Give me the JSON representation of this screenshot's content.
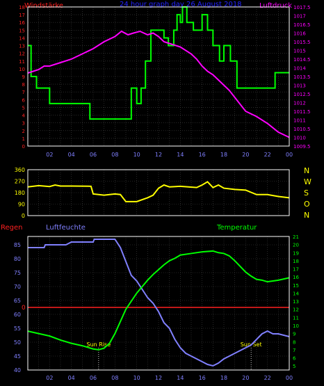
{
  "header": {
    "title": "24 hour graph day   26 August  2018",
    "left_label": "Windstärke",
    "right_label": "Luftdruck"
  },
  "colors": {
    "background": "#000000",
    "grid": "#444444",
    "frame": "#ffffff",
    "title": "#2323ff",
    "wind_axis": "#ff2020",
    "pressure": "#ff00ff",
    "wind": "#00ff00",
    "direction": "#ffff00",
    "humidity": "#8080ff",
    "temperature": "#00ff00",
    "rain": "#ff2020",
    "sun_text": "#ffff00",
    "xtick": "#8080ff",
    "dir_letters": "#ffff00"
  },
  "chart_data": [
    {
      "type": "line",
      "title": "24 hour graph day   26 August  2018",
      "x_range": [
        0,
        24
      ],
      "x_tick_labels": [
        "02",
        "04",
        "06",
        "08",
        "10",
        "12",
        "14",
        "16",
        "18",
        "20",
        "22",
        "00"
      ],
      "left_axis": {
        "label": "Windstärke",
        "range": [
          0,
          18
        ],
        "ticks": [
          0,
          1,
          2,
          3,
          4,
          5,
          6,
          7,
          8,
          9,
          10,
          11,
          12,
          13,
          14,
          15,
          16,
          17,
          18
        ]
      },
      "right_axis": {
        "label": "Luftdruck",
        "range": [
          1009.5,
          1017.5
        ],
        "ticks": [
          "1009.5",
          "1010",
          "1010.5",
          "1011",
          "1011.5",
          "1012",
          "1012.5",
          "1013",
          "1013.5",
          "1014",
          "1014.5",
          "1015",
          "1015.5",
          "1016",
          "1016.5",
          "1017",
          "1017.5"
        ]
      },
      "series": [
        {
          "name": "Windstärke",
          "kind": "step",
          "axis": "left",
          "points": [
            [
              0,
              13
            ],
            [
              0.3,
              9
            ],
            [
              0.8,
              7.5
            ],
            [
              2,
              5.5
            ],
            [
              5.7,
              3.5
            ],
            [
              9.2,
              3.5
            ],
            [
              9.5,
              7.5
            ],
            [
              10,
              5.5
            ],
            [
              10.4,
              7.5
            ],
            [
              10.8,
              11
            ],
            [
              11.3,
              15
            ],
            [
              12,
              15
            ],
            [
              12.5,
              14
            ],
            [
              12.9,
              13
            ],
            [
              13.4,
              15
            ],
            [
              13.7,
              17
            ],
            [
              14,
              16
            ],
            [
              14.2,
              18
            ],
            [
              14.6,
              16
            ],
            [
              15.2,
              15
            ],
            [
              15.7,
              15
            ],
            [
              16,
              17
            ],
            [
              16.5,
              15
            ],
            [
              17,
              13
            ],
            [
              17.6,
              11
            ],
            [
              18,
              13
            ],
            [
              18.6,
              11
            ],
            [
              19.2,
              7.5
            ],
            [
              21.8,
              7.5
            ],
            [
              22.7,
              9.5
            ],
            [
              24,
              9.5
            ]
          ]
        },
        {
          "name": "Luftdruck",
          "kind": "line",
          "axis": "right",
          "points": [
            [
              0,
              1013.7
            ],
            [
              1,
              1013.9
            ],
            [
              1.5,
              1014.1
            ],
            [
              2,
              1014.1
            ],
            [
              3,
              1014.3
            ],
            [
              4,
              1014.5
            ],
            [
              5,
              1014.8
            ],
            [
              6,
              1015.1
            ],
            [
              7,
              1015.5
            ],
            [
              8,
              1015.8
            ],
            [
              8.6,
              1016.1
            ],
            [
              9.2,
              1015.9
            ],
            [
              9.7,
              1016
            ],
            [
              10.3,
              1016.1
            ],
            [
              11,
              1015.9
            ],
            [
              11.5,
              1016
            ],
            [
              12,
              1015.8
            ],
            [
              12.5,
              1015.5
            ],
            [
              13,
              1015.4
            ],
            [
              14,
              1015.2
            ],
            [
              15,
              1014.8
            ],
            [
              15.5,
              1014.5
            ],
            [
              16,
              1014.1
            ],
            [
              16.5,
              1013.8
            ],
            [
              17,
              1013.6
            ],
            [
              17.5,
              1013.3
            ],
            [
              18,
              1013
            ],
            [
              18.5,
              1012.7
            ],
            [
              19,
              1012.3
            ],
            [
              19.5,
              1011.9
            ],
            [
              20,
              1011.5
            ],
            [
              21,
              1011.2
            ],
            [
              22,
              1010.8
            ],
            [
              23,
              1010.3
            ],
            [
              24,
              1010
            ]
          ]
        }
      ]
    },
    {
      "type": "line",
      "x_range": [
        0,
        24
      ],
      "x_tick_labels": [
        "02",
        "04",
        "06",
        "08",
        "10",
        "12",
        "14",
        "16",
        "18",
        "20",
        "22",
        "00"
      ],
      "left_axis": {
        "range": [
          0,
          360
        ],
        "ticks": [
          0,
          90,
          180,
          270,
          360
        ]
      },
      "right_axis_labels": [
        "N",
        "W",
        "S",
        "O",
        "N"
      ],
      "series": [
        {
          "name": "Windrichtung",
          "kind": "line",
          "points": [
            [
              0,
              225
            ],
            [
              1,
              235
            ],
            [
              2,
              228
            ],
            [
              2.5,
              240
            ],
            [
              3,
              232
            ],
            [
              4,
              232
            ],
            [
              5.8,
              230
            ],
            [
              6,
              170
            ],
            [
              7,
              160
            ],
            [
              8,
              170
            ],
            [
              8.5,
              165
            ],
            [
              9,
              110
            ],
            [
              10,
              110
            ],
            [
              11,
              140
            ],
            [
              11.5,
              160
            ],
            [
              12,
              215
            ],
            [
              12.5,
              240
            ],
            [
              13,
              225
            ],
            [
              14,
              230
            ],
            [
              15.5,
              220
            ],
            [
              16,
              240
            ],
            [
              16.5,
              265
            ],
            [
              17,
              220
            ],
            [
              17.5,
              240
            ],
            [
              18,
              215
            ],
            [
              19,
              205
            ],
            [
              20,
              200
            ],
            [
              21,
              165
            ],
            [
              22,
              165
            ],
            [
              23,
              150
            ],
            [
              24,
              140
            ]
          ]
        }
      ]
    },
    {
      "type": "line",
      "x_range": [
        0,
        24
      ],
      "x_tick_labels": [
        "02",
        "04",
        "06",
        "08",
        "10",
        "12",
        "14",
        "16",
        "18",
        "20",
        "22",
        "00"
      ],
      "labels": {
        "rain": "Regen",
        "humidity": "Luftfeuchte",
        "temperature": "Temperatur"
      },
      "left_axis": {
        "label": "Luftfeuchte",
        "range": [
          40,
          88
        ],
        "ticks": [
          40,
          45,
          50,
          55,
          60,
          65,
          70,
          75,
          80,
          85
        ]
      },
      "rain_axis": {
        "label": "Regen",
        "tick": "0",
        "value": 62.5
      },
      "right_axis": {
        "label": "Temperatur",
        "range": [
          4.5,
          21
        ],
        "ticks": [
          5,
          6,
          7,
          8,
          9,
          10,
          11,
          12,
          13,
          14,
          15,
          16,
          17,
          18,
          19,
          20,
          21
        ]
      },
      "annotations": [
        {
          "text": "Sun Rise",
          "x": 6.5
        },
        {
          "text": "Sun Set",
          "x": 20.5
        }
      ],
      "series": [
        {
          "name": "Luftfeuchte",
          "kind": "line",
          "axis": "left",
          "points": [
            [
              0,
              84
            ],
            [
              1.5,
              84
            ],
            [
              1.6,
              85
            ],
            [
              3.5,
              85
            ],
            [
              4,
              86
            ],
            [
              6,
              86
            ],
            [
              6.1,
              87
            ],
            [
              8,
              87
            ],
            [
              8.5,
              84
            ],
            [
              9,
              79
            ],
            [
              9.5,
              74
            ],
            [
              10,
              72
            ],
            [
              10.5,
              69
            ],
            [
              11,
              66
            ],
            [
              11.5,
              64
            ],
            [
              12,
              61
            ],
            [
              12.5,
              57
            ],
            [
              13,
              55
            ],
            [
              13.5,
              51
            ],
            [
              14,
              48
            ],
            [
              14.5,
              46
            ],
            [
              15,
              45
            ],
            [
              15.5,
              44
            ],
            [
              16,
              43
            ],
            [
              16.5,
              42
            ],
            [
              17,
              41.5
            ],
            [
              17.5,
              42.5
            ],
            [
              18,
              44
            ],
            [
              18.5,
              45
            ],
            [
              19,
              46
            ],
            [
              19.5,
              47
            ],
            [
              20,
              48
            ],
            [
              20.5,
              49
            ],
            [
              21,
              51
            ],
            [
              21.5,
              53
            ],
            [
              22,
              54
            ],
            [
              22.5,
              53
            ],
            [
              23,
              53
            ],
            [
              24,
              52
            ]
          ]
        },
        {
          "name": "Temperatur",
          "kind": "line",
          "axis": "right",
          "points": [
            [
              0,
              9.3
            ],
            [
              1,
              9
            ],
            [
              2,
              8.7
            ],
            [
              3,
              8.2
            ],
            [
              4,
              7.8
            ],
            [
              5,
              7.5
            ],
            [
              6,
              7.1
            ],
            [
              6.5,
              7
            ],
            [
              7,
              7.2
            ],
            [
              7.5,
              7.8
            ],
            [
              8,
              9
            ],
            [
              8.5,
              10.5
            ],
            [
              9,
              12
            ],
            [
              9.5,
              13
            ],
            [
              10,
              14
            ],
            [
              10.5,
              14.8
            ],
            [
              11,
              15.6
            ],
            [
              11.5,
              16.3
            ],
            [
              12,
              16.9
            ],
            [
              12.5,
              17.5
            ],
            [
              13,
              18
            ],
            [
              13.5,
              18.3
            ],
            [
              14,
              18.7
            ],
            [
              15,
              18.9
            ],
            [
              16,
              19.1
            ],
            [
              17,
              19.2
            ],
            [
              17.5,
              19
            ],
            [
              18,
              18.9
            ],
            [
              18.5,
              18.6
            ],
            [
              19,
              18
            ],
            [
              19.5,
              17.3
            ],
            [
              20,
              16.6
            ],
            [
              20.5,
              16.1
            ],
            [
              21,
              15.7
            ],
            [
              21.5,
              15.6
            ],
            [
              22,
              15.4
            ],
            [
              23,
              15.6
            ],
            [
              24,
              15.9
            ]
          ]
        }
      ]
    }
  ]
}
